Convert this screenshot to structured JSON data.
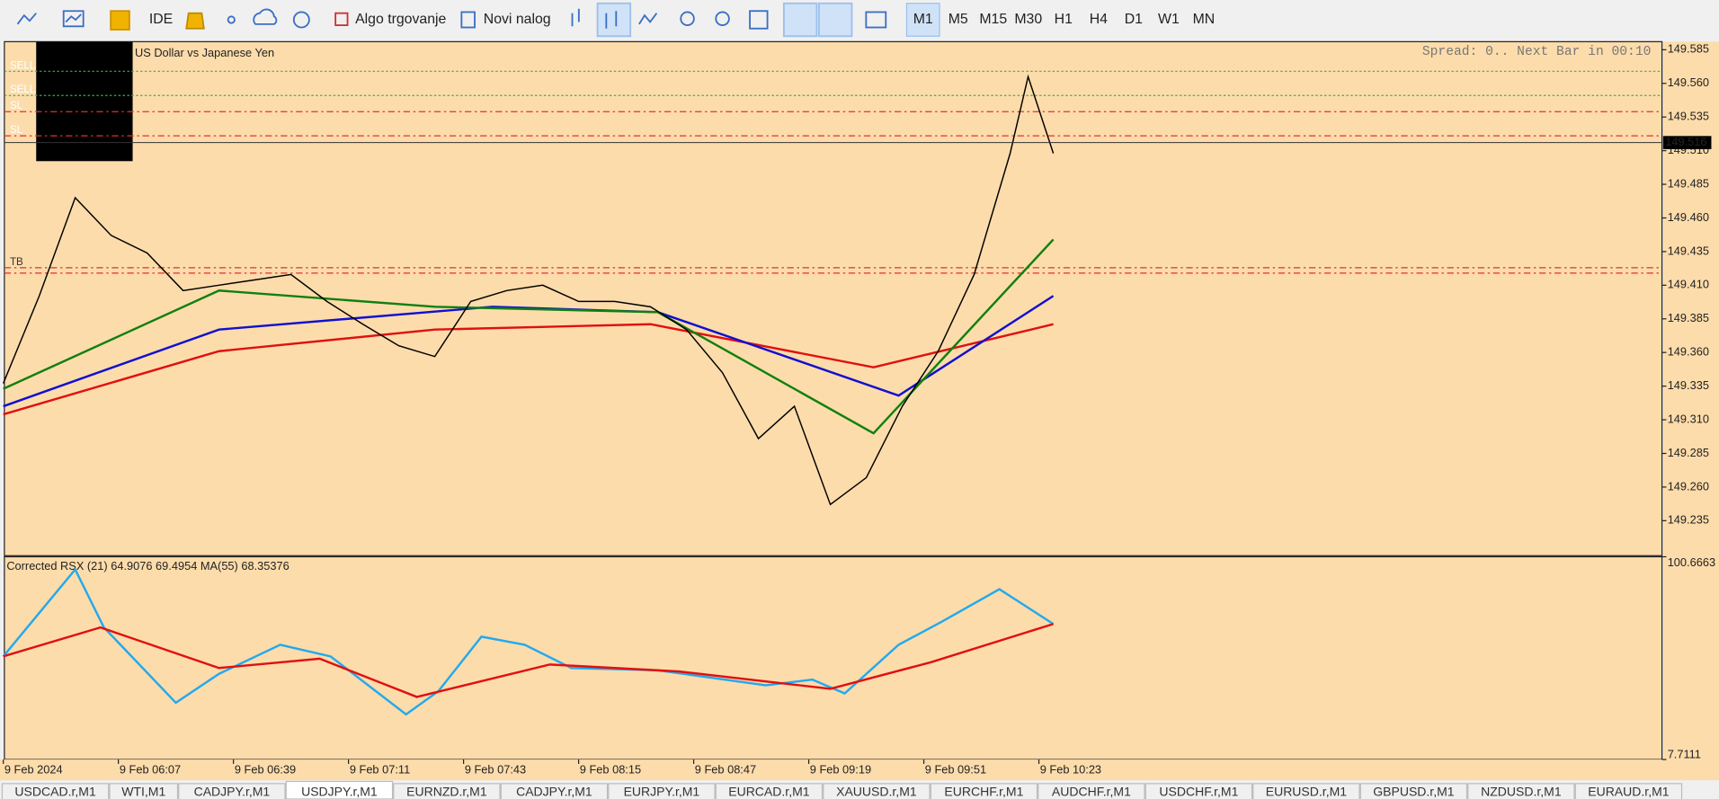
{
  "toolbar": {
    "buttons": [
      "IDE",
      "Algo trgovanje",
      "Novi nalog"
    ],
    "timeframes": [
      "M1",
      "M5",
      "M15",
      "M30",
      "H1",
      "H4",
      "D1",
      "W1",
      "MN"
    ],
    "active_timeframe": 0
  },
  "chart": {
    "description": "US Dollar vs Japanese Yen",
    "info": "Spread: 0.. Next Bar in 00:10",
    "ylim": [
      149.209,
      149.591
    ],
    "yticks": [
      149.585,
      {
        "value": 149.56,
        "label": "149.560"
      },
      149.535,
      {
        "value": 149.51,
        "label": "149.510"
      },
      149.485,
      {
        "value": 149.46,
        "label": "149.460"
      },
      149.435,
      {
        "value": 149.41,
        "label": "149.410"
      },
      149.385,
      {
        "value": 149.36,
        "label": "149.360"
      },
      149.335,
      {
        "value": 149.31,
        "label": "149.310"
      },
      149.285,
      {
        "value": 149.26,
        "label": "149.260"
      },
      149.235
    ],
    "xlim": [
      0,
      462
    ],
    "xticks": [
      {
        "value": 0,
        "label": "9 Feb 2024"
      },
      {
        "value": 32,
        "label": "9 Feb 06:07"
      },
      {
        "value": 64,
        "label": "9 Feb 06:39"
      },
      {
        "value": 96,
        "label": "9 Feb 07:11"
      },
      {
        "value": 128,
        "label": "9 Feb 07:43"
      },
      {
        "value": 160,
        "label": "9 Feb 08:15"
      },
      {
        "value": 192,
        "label": "9 Feb 08:47"
      },
      {
        "value": 224,
        "label": "9 Feb 09:19"
      },
      {
        "value": 256,
        "label": "9 Feb 09:51"
      },
      {
        "value": 288,
        "label": "9 Feb 10:23"
      }
    ],
    "current_price": 149.516,
    "price_line": {
      "color": "#000000",
      "x": [
        0,
        10,
        20,
        30,
        40,
        50,
        60,
        70,
        80,
        90,
        100,
        110,
        120,
        130,
        140,
        150,
        160,
        170,
        180,
        190,
        200,
        210,
        220,
        230,
        240,
        250,
        260,
        270,
        280,
        285,
        292
      ],
      "values": [
        149.337,
        149.402,
        149.475,
        149.447,
        149.434,
        149.406,
        149.41,
        149.414,
        149.418,
        149.398,
        149.381,
        149.365,
        149.357,
        149.398,
        149.406,
        149.41,
        149.398,
        149.398,
        149.394,
        149.377,
        149.345,
        149.296,
        149.32,
        149.247,
        149.267,
        149.32,
        149.361,
        149.418,
        149.508,
        149.565,
        149.508
      ]
    },
    "moving_averages": [
      {
        "color": "#e01010",
        "x": [
          0,
          60,
          120,
          180,
          242,
          292
        ],
        "values": [
          149.314,
          149.361,
          149.377,
          149.381,
          149.349,
          149.381
        ]
      },
      {
        "color": "#1010d0",
        "x": [
          0,
          60,
          136,
          182,
          249,
          292
        ],
        "values": [
          149.32,
          149.377,
          149.394,
          149.39,
          149.328,
          149.402
        ]
      },
      {
        "color": "#108010",
        "x": [
          0,
          60,
          120,
          182,
          242,
          292
        ],
        "values": [
          149.333,
          149.406,
          149.394,
          149.39,
          149.3,
          149.444
        ]
      }
    ],
    "levels": [
      {
        "label": "SELL",
        "value": 149.569,
        "color": "#3cb043"
      },
      {
        "label": "SELL",
        "value": 149.551,
        "color": "#3cb043"
      },
      {
        "label": "SL",
        "value": 149.539,
        "color": "#e03030"
      },
      {
        "label": "SL",
        "value": 149.521,
        "color": "#e03030"
      },
      {
        "label": "TB",
        "value": 149.423,
        "color": "#e03030"
      },
      {
        "value": 149.419,
        "color": "#e03030"
      }
    ]
  },
  "indicator": {
    "title": "Corrected RSX (21) 64.9076 69.4954 MA(55) 68.35376",
    "ylim": [
      7.7111,
      100.6663
    ],
    "yticks": [
      100.6663,
      7.7111
    ],
    "series": [
      {
        "color": "#22aaee",
        "x": [
          0,
          20,
          28,
          48,
          60,
          77,
          91,
          112,
          121,
          133,
          145,
          158,
          182,
          212,
          225,
          234,
          249,
          261,
          277,
          292
        ],
        "values": [
          54.98,
          94.82,
          68.27,
          33.74,
          47.02,
          60.3,
          54.98,
          28.43,
          39.05,
          64.02,
          60.3,
          49.68,
          48.61,
          41.71,
          44.36,
          37.99,
          60.3,
          70.92,
          85.79,
          69.86
        ]
      },
      {
        "color": "#e01010",
        "x": [
          0,
          27,
          60,
          88,
          115,
          152,
          188,
          230,
          258,
          292
        ],
        "values": [
          54.98,
          68.27,
          49.68,
          53.92,
          36.4,
          51.27,
          48.08,
          40.11,
          52.33,
          69.86
        ]
      }
    ]
  },
  "tabs": {
    "items": [
      "USDCAD.r,M1",
      "WTI,M1",
      "CADJPY.r,M1",
      "USDJPY.r,M1",
      "EURNZD.r,M1",
      "CADJPY.r,M1",
      "EURJPY.r,M1",
      "EURCAD.r,M1",
      "XAUUSD.r,M1",
      "EURCHF.r,M1",
      "AUDCHF.r,M1",
      "USDCHF.r,M1",
      "EURUSD.r,M1",
      "GBPUSD.r,M1",
      "NZDUSD.r,M1",
      "EURAUD.r,M1"
    ],
    "active": 3
  }
}
